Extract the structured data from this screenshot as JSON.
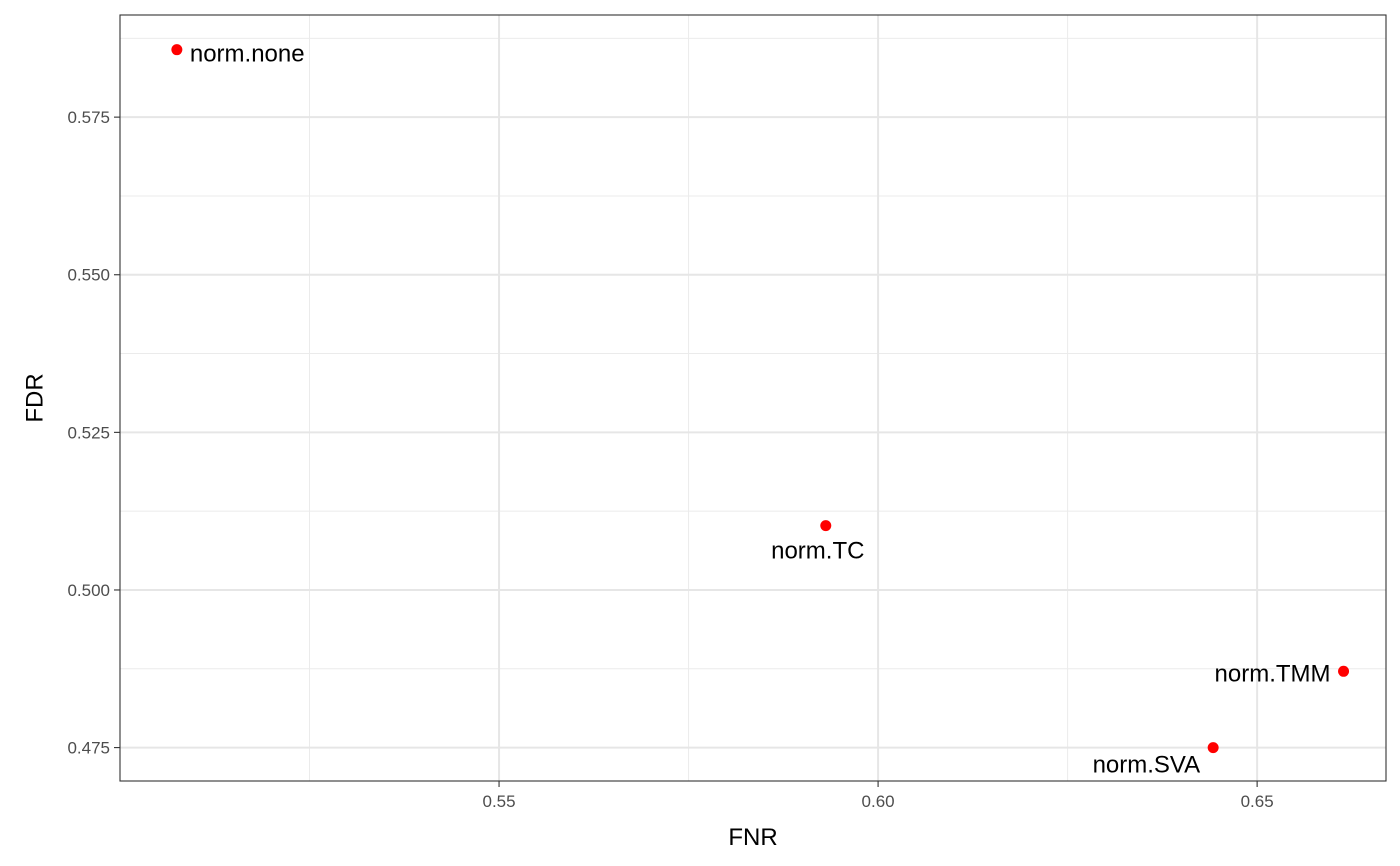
{
  "chart_data": {
    "type": "scatter",
    "xlabel": "FNR",
    "ylabel": "FDR",
    "xlim": [
      0.5,
      0.667
    ],
    "ylim": [
      0.4697,
      0.5912
    ],
    "xticks": [
      0.55,
      0.6,
      0.65
    ],
    "xtick_labels": [
      "0.55",
      "0.60",
      "0.65"
    ],
    "yticks": [
      0.475,
      0.5,
      0.525,
      0.55,
      0.575
    ],
    "ytick_labels": [
      "0.475",
      "0.500",
      "0.525",
      "0.550",
      "0.575"
    ],
    "grid": true,
    "point_color": "#ff0000",
    "points": [
      {
        "label": "norm.none",
        "x": 0.5075,
        "y": 0.5857,
        "label_side": "right"
      },
      {
        "label": "norm.TC",
        "x": 0.5931,
        "y": 0.5102,
        "label_side": "below"
      },
      {
        "label": "norm.TMM",
        "x": 0.6614,
        "y": 0.4871,
        "label_side": "left"
      },
      {
        "label": "norm.SVA",
        "x": 0.6442,
        "y": 0.475,
        "label_side": "below-left"
      }
    ]
  }
}
